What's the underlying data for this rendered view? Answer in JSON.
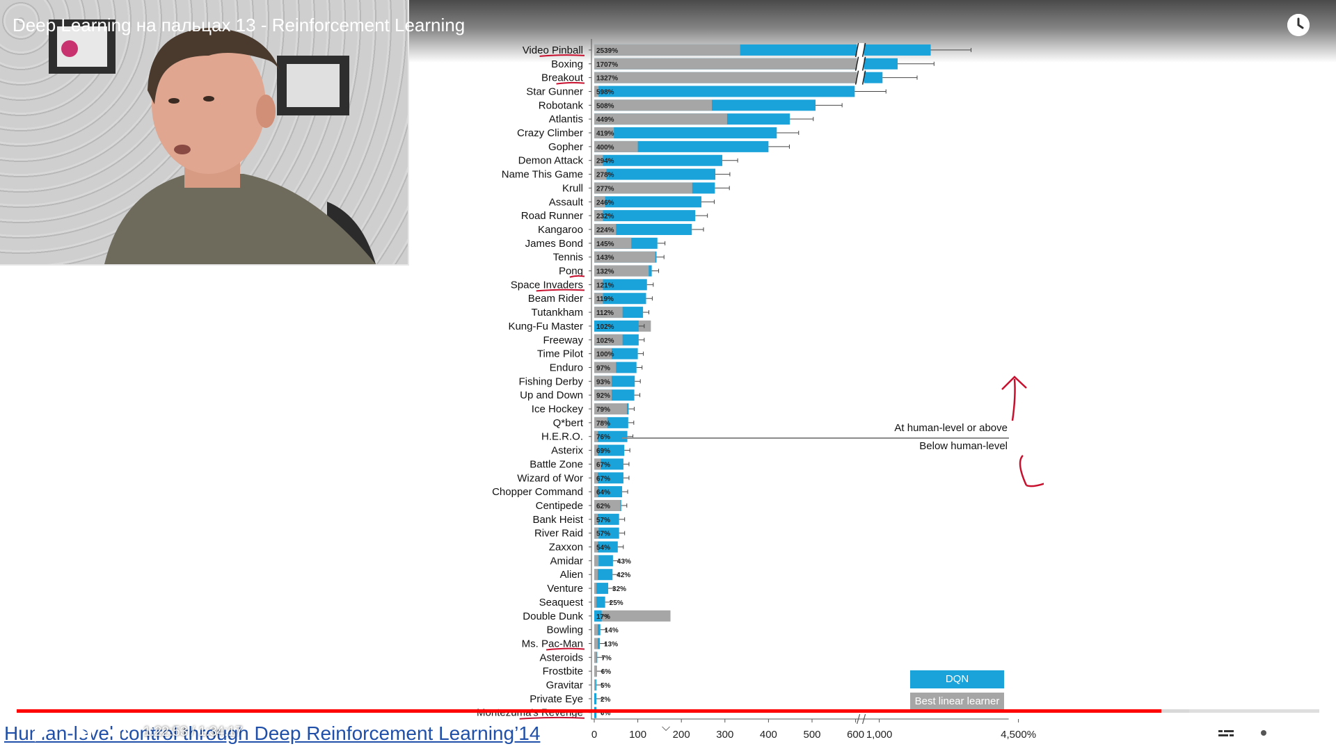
{
  "video": {
    "title": "Deep Learning на пальцах 13 - Reinforcement Learning",
    "citation": "Human-level control through Deep Reinforcement Learning’14",
    "time_current": "1:22:53",
    "time_separator": " / ",
    "time_total": "1:34:17",
    "progress": 0.879,
    "buffered": 0.9
  },
  "icons": {
    "clock": "clock-icon",
    "play": "play-icon",
    "next": "next-icon",
    "volume": "volume-icon",
    "subtitles": "subtitles-icon",
    "settings": "gear-icon",
    "exit_fullscreen": "exit-fullscreen-icon",
    "chevron": "chevron-down-icon"
  },
  "colors": {
    "dqn": "#1aa3da",
    "linear": "#a6a6a6",
    "progress": "#ff0000",
    "annotation": "#c8102e"
  },
  "annotations": {
    "above": "At human-level or above",
    "below": "Below human-level"
  },
  "legend": {
    "dqn": "DQN",
    "linear": "Best linear learner"
  },
  "chart_data": {
    "type": "bar",
    "orientation": "horizontal",
    "axis_break": [
      600,
      1000
    ],
    "x_ticks": [
      "0",
      "100",
      "200",
      "300",
      "400",
      "500",
      "600",
      "1,000",
      "4,500%"
    ],
    "x_tick_values": [
      0,
      100,
      200,
      300,
      400,
      500,
      600,
      1000,
      4500
    ],
    "series": [
      {
        "name": "DQN",
        "color": "#1aa3da"
      },
      {
        "name": "Best linear learner",
        "color": "#a6a6a6"
      }
    ],
    "categories": [
      "Video Pinball",
      "Boxing",
      "Breakout",
      "Star Gunner",
      "Robotank",
      "Atlantis",
      "Crazy Climber",
      "Gopher",
      "Demon Attack",
      "Name This Game",
      "Krull",
      "Assault",
      "Road Runner",
      "Kangaroo",
      "James Bond",
      "Tennis",
      "Pong",
      "Space Invaders",
      "Beam Rider",
      "Tutankham",
      "Kung-Fu Master",
      "Freeway",
      "Time Pilot",
      "Enduro",
      "Fishing Derby",
      "Up and Down",
      "Ice Hockey",
      "Q*bert",
      "H.E.R.O.",
      "Asterix",
      "Battle Zone",
      "Wizard of Wor",
      "Chopper Command",
      "Centipede",
      "Bank Heist",
      "River Raid",
      "Zaxxon",
      "Amidar",
      "Alien",
      "Venture",
      "Seaquest",
      "Double Dunk",
      "Bowling",
      "Ms. Pac-Man",
      "Asteroids",
      "Frostbite",
      "Gravitar",
      "Private Eye",
      "Montezuma's Revenge"
    ],
    "labels": [
      "2539%",
      "1707%",
      "1327%",
      "598%",
      "508%",
      "449%",
      "419%",
      "400%",
      "294%",
      "278%",
      "277%",
      "246%",
      "232%",
      "224%",
      "145%",
      "143%",
      "132%",
      "121%",
      "119%",
      "112%",
      "102%",
      "102%",
      "100%",
      "97%",
      "93%",
      "92%",
      "79%",
      "78%",
      "76%",
      "69%",
      "67%",
      "67%",
      "64%",
      "62%",
      "57%",
      "57%",
      "54%",
      "43%",
      "42%",
      "32%",
      "25%",
      "17%",
      "14%",
      "13%",
      "7%",
      "6%",
      "5%",
      "2%",
      "0%"
    ],
    "dqn": [
      2539,
      1707,
      1327,
      598,
      508,
      449,
      419,
      400,
      294,
      278,
      277,
      246,
      232,
      224,
      145,
      143,
      132,
      121,
      119,
      112,
      102,
      102,
      100,
      97,
      93,
      92,
      79,
      78,
      76,
      69,
      67,
      67,
      64,
      62,
      57,
      57,
      54,
      43,
      42,
      32,
      25,
      17,
      14,
      13,
      7,
      6,
      5,
      2,
      0
    ],
    "linear": [
      335,
      680,
      650,
      10,
      270,
      305,
      45,
      100,
      20,
      28,
      225,
      25,
      20,
      50,
      85,
      140,
      125,
      20,
      20,
      65,
      130,
      65,
      40,
      50,
      40,
      40,
      75,
      30,
      8,
      8,
      15,
      8,
      8,
      60,
      8,
      10,
      8,
      10,
      8,
      5,
      5,
      175,
      8,
      8,
      5,
      5,
      3,
      5,
      5
    ],
    "human_level_threshold": "100%"
  }
}
